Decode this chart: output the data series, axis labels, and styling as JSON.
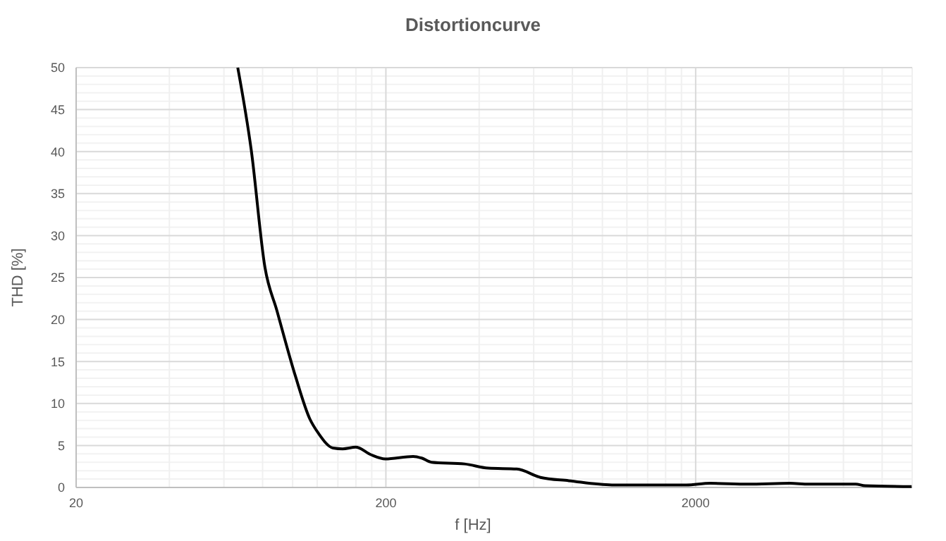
{
  "chart_data": {
    "type": "line",
    "title": "Distortioncurve",
    "xlabel": "f [Hz]",
    "ylabel": "THD [%]",
    "log": "x",
    "grid": true,
    "marker": "none",
    "line_style": "solid",
    "xlim": [
      20,
      10000
    ],
    "xticks": [
      20,
      200,
      2000
    ],
    "ylim": [
      0,
      50
    ],
    "yticks": [
      0,
      5,
      10,
      15,
      20,
      25,
      30,
      35,
      40,
      45,
      50
    ],
    "x": [
      66.5,
      73.5,
      81.4,
      88.9,
      102,
      113.5,
      121.4,
      135,
      145,
      160,
      179,
      199,
      245,
      261,
      281,
      359,
      428,
      529,
      631,
      779,
      1073,
      1865,
      2228,
      2945,
      4031,
      4634,
      6570,
      7050,
      9960
    ],
    "series": [
      {
        "color": "#000000",
        "values": [
          50,
          40.2,
          26.2,
          21.1,
          13.3,
          8.2,
          6.4,
          4.7,
          4.6,
          4.8,
          3.9,
          3.4,
          3.7,
          3.5,
          3.0,
          2.8,
          2.3,
          2.2,
          1.2,
          0.8,
          0.3,
          0.3,
          0.5,
          0.4,
          0.5,
          0.4,
          0.4,
          0.2,
          0.1
        ]
      }
    ]
  }
}
